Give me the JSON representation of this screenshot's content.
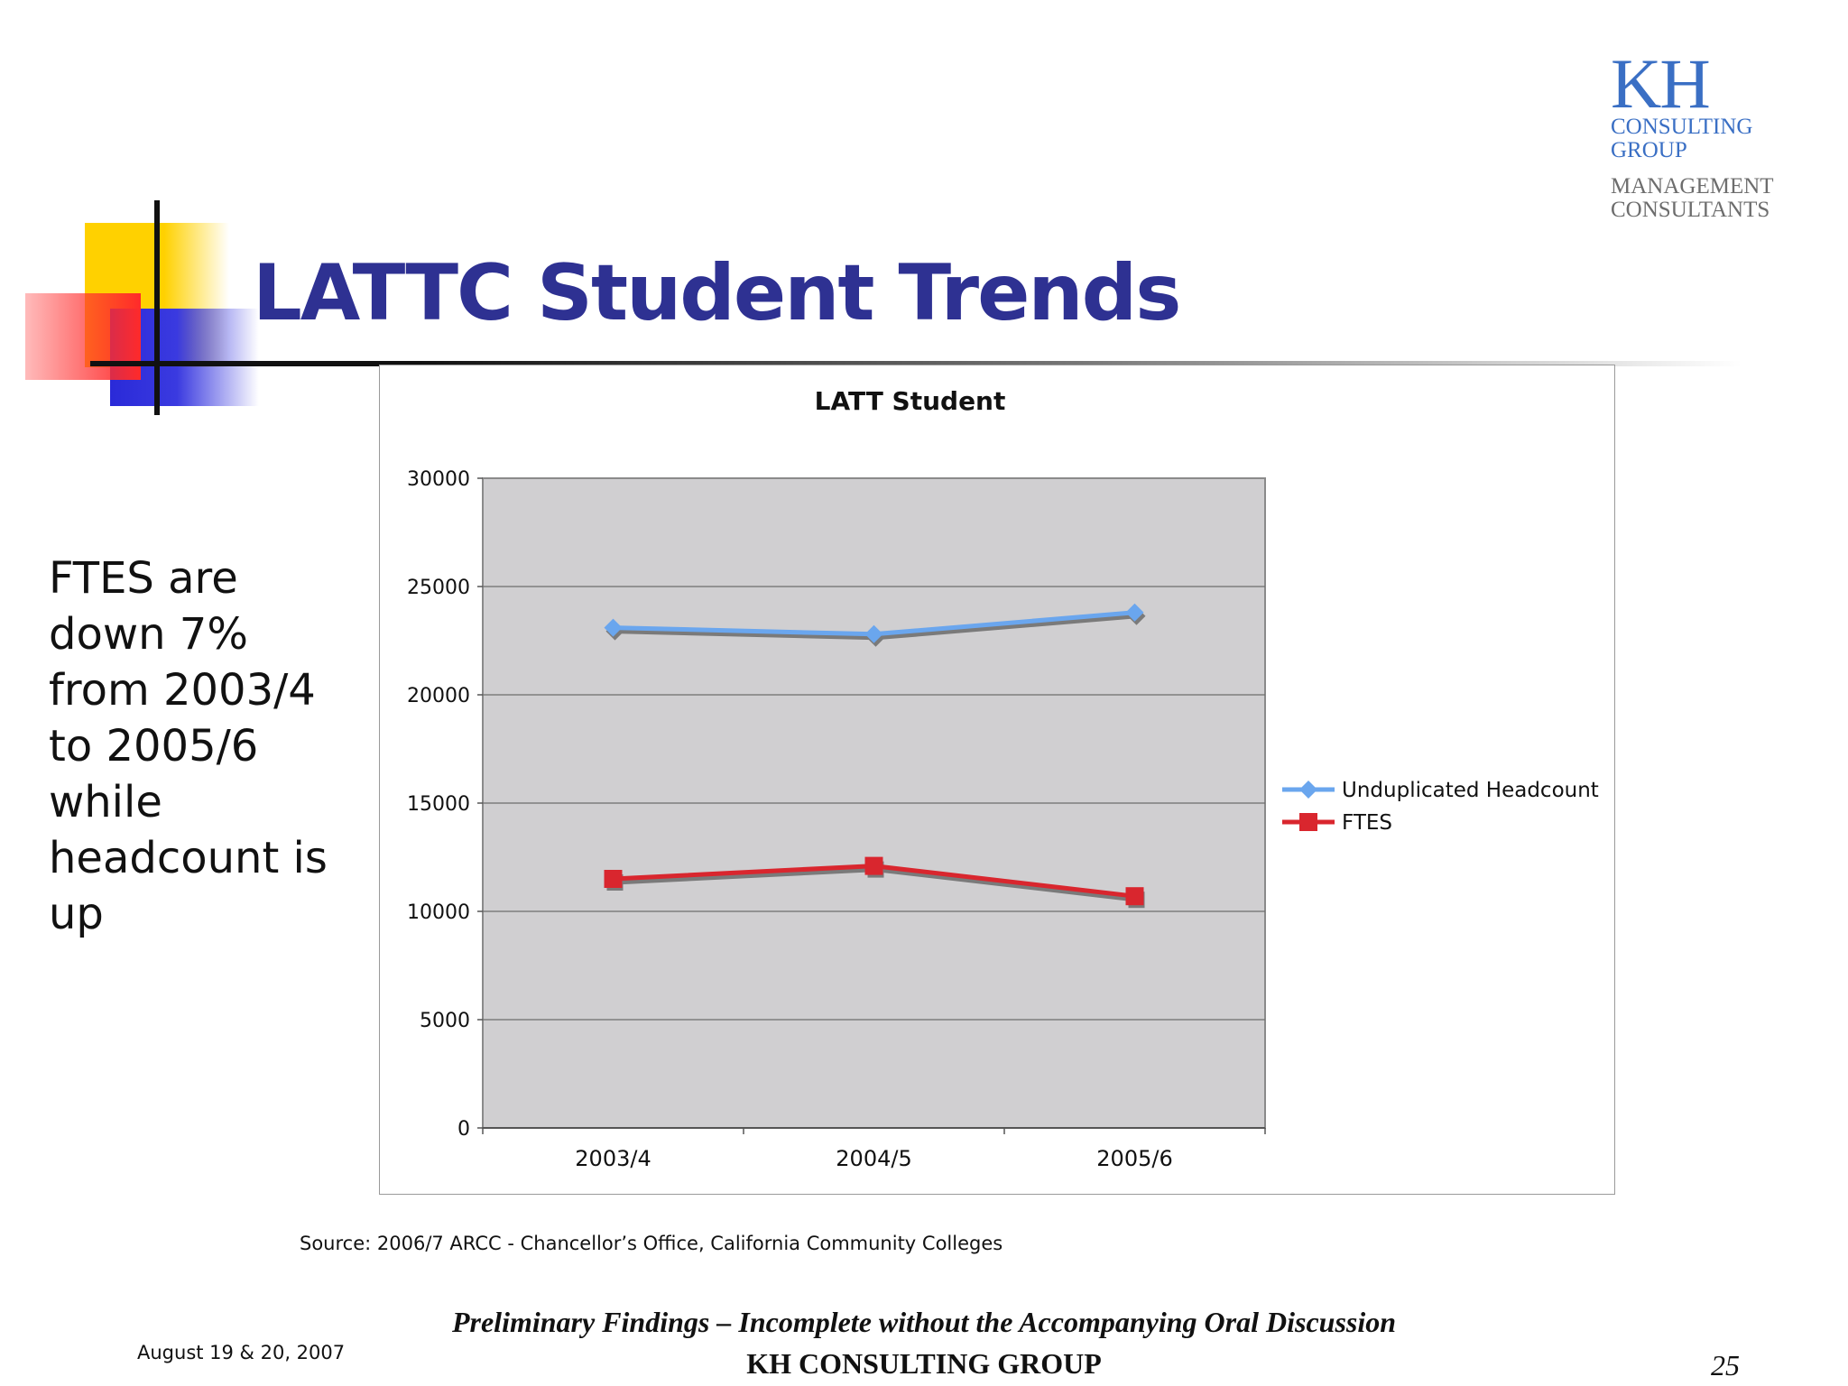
{
  "slide": {
    "title": "LATTC Student Trends",
    "side_text": "FTES are down 7% from 2003/4 to 2005/6 while headcount is up",
    "source": "Source: 2006/7 ARCC - Chancellor’s Office, California Community Colleges"
  },
  "logo": {
    "mark": "KH",
    "line1": "CONSULTING",
    "line2": "GROUP",
    "line3": "MANAGEMENT",
    "line4": "CONSULTANTS"
  },
  "footer": {
    "date": "August 19 & 20, 2007",
    "disclaimer": "Preliminary Findings – Incomplete without the Accompanying Oral Discussion",
    "company": "KH CONSULTING GROUP",
    "page": "25"
  },
  "colors": {
    "title": "#2e3192",
    "plot_area": "#d0cfd1",
    "headcount": "#6aa6ee",
    "ftes": "#d9262e",
    "shadow": "#7a7a7a"
  },
  "chart_data": {
    "type": "line",
    "title": "LATT Student",
    "xlabel": "",
    "ylabel": "",
    "categories": [
      "2003/4",
      "2004/5",
      "2005/6"
    ],
    "ylim": [
      0,
      30000
    ],
    "yticks": [
      0,
      5000,
      10000,
      15000,
      20000,
      25000,
      30000
    ],
    "grid": true,
    "legend_position": "right",
    "series": [
      {
        "name": "Unduplicated Headcount",
        "values": [
          23100,
          22800,
          23800
        ],
        "marker": "diamond",
        "color": "#6aa6ee"
      },
      {
        "name": "FTES",
        "values": [
          11500,
          12100,
          10700
        ],
        "marker": "square",
        "color": "#d9262e"
      }
    ]
  }
}
